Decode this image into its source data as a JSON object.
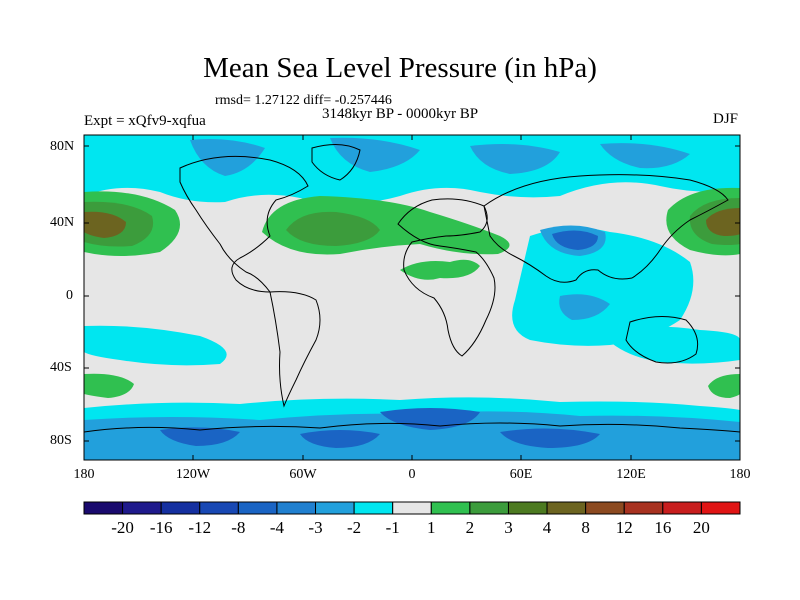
{
  "title": "Mean Sea Level Pressure (in hPa)",
  "stats": "rmsd= 1.27122 diff= -0.257446",
  "period": "3148kyr BP - 0000kyr BP",
  "experiment": "Expt = xQfv9-xqfua",
  "season": "DJF",
  "lat_ticks": [
    "80N",
    "40N",
    "0",
    "40S",
    "80S"
  ],
  "lon_ticks": [
    "180",
    "120W",
    "60W",
    "0",
    "60E",
    "120E",
    "180"
  ],
  "colorbar": {
    "labels": [
      "-20",
      "-16",
      "-12",
      "-8",
      "-4",
      "-3",
      "-2",
      "-1",
      "1",
      "2",
      "3",
      "4",
      "8",
      "12",
      "16",
      "20"
    ],
    "colors": [
      "#1a0a6e",
      "#1f1a8c",
      "#1530a0",
      "#1848b4",
      "#1a64c4",
      "#2080d0",
      "#22a0dc",
      "#00e6f0",
      "#e6e6e6",
      "#30c050",
      "#3c9c3c",
      "#4c7a20",
      "#6c6420",
      "#8c4a20",
      "#a83220",
      "#c81e1e",
      "#e01414"
    ]
  },
  "colors": {
    "neutral": "#e6e6e6",
    "cyan": "#00e6f0",
    "light_blue": "#22a0dc",
    "mid_blue": "#1a64c4",
    "dark_blue": "#1530a0",
    "green": "#30c050",
    "dark_green": "#3c9c3c",
    "olive": "#6c6420"
  }
}
